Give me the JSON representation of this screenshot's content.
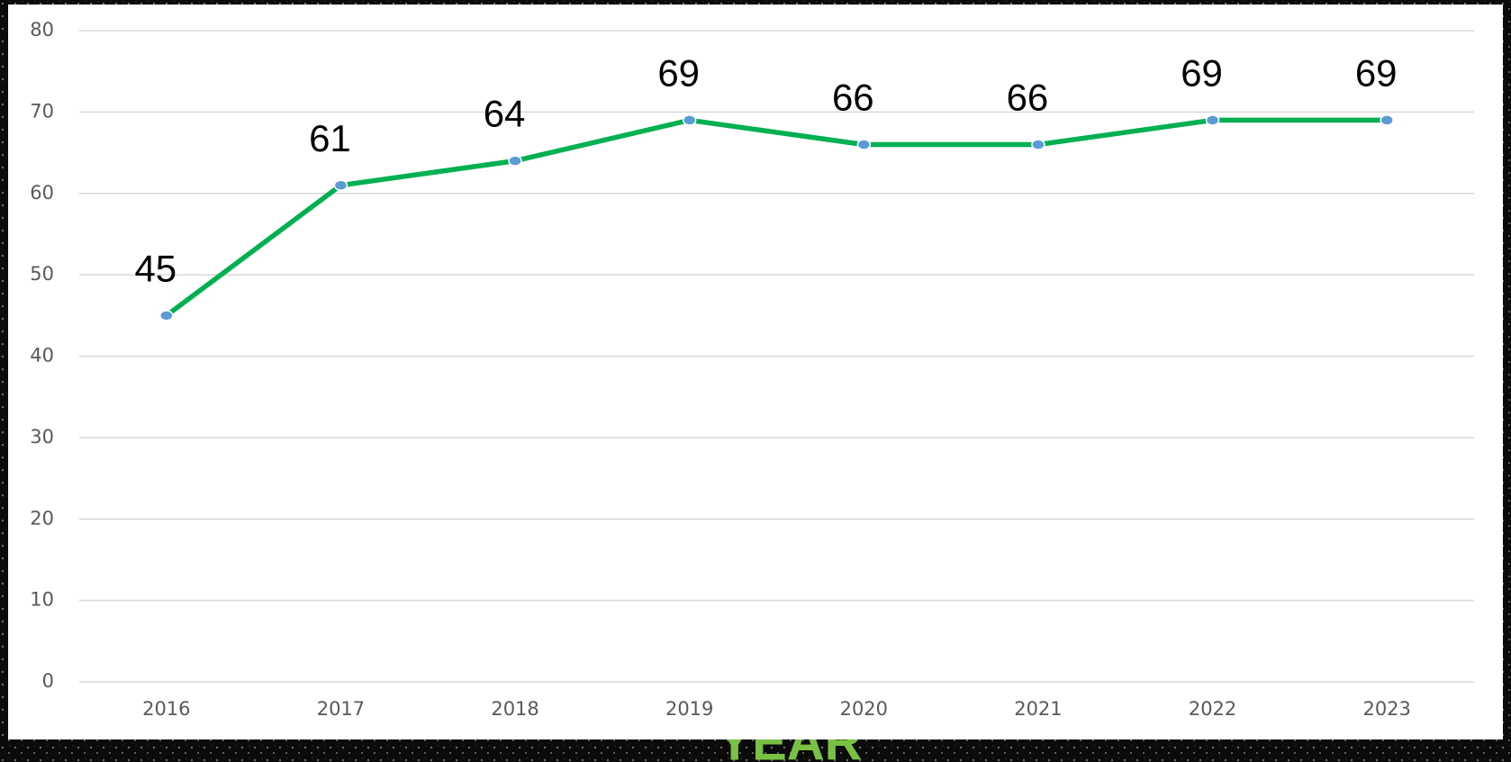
{
  "chart_data": {
    "type": "line",
    "x_label": "YEAR",
    "categories": [
      "2016",
      "2017",
      "2018",
      "2019",
      "2020",
      "2021",
      "2022",
      "2023"
    ],
    "series": [
      {
        "color": "#00b050",
        "marker_color": "#5b9bd5",
        "values": [
          45,
          61,
          64,
          69,
          66,
          66,
          69,
          69
        ]
      }
    ],
    "ylim": [
      0,
      80
    ],
    "yticks": [
      0,
      10,
      20,
      30,
      40,
      50,
      60,
      70,
      80
    ],
    "grid": true
  }
}
